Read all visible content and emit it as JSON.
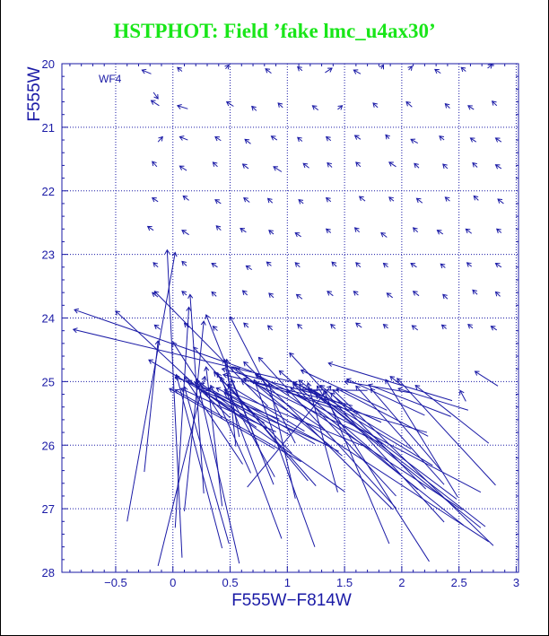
{
  "chart_data": {
    "type": "scatter",
    "title": "HSTPHOT: Field ’fake lmc_u4ax30’",
    "xlabel": "F555W−F814W",
    "ylabel": "F555W",
    "panel_label": "WF4",
    "xlim": [
      -0.97,
      3.02
    ],
    "ylim": [
      28,
      20
    ],
    "y_inverted": true,
    "grid": true,
    "grid_style": "dotted",
    "x_ticks": [
      -0.5,
      0,
      0.5,
      1,
      1.5,
      2,
      2.5,
      3
    ],
    "x_tick_labels": [
      "−0.5",
      "0",
      "0.5",
      "1",
      "1.5",
      "2",
      "2.5",
      "3"
    ],
    "y_ticks": [
      20,
      21,
      22,
      23,
      24,
      25,
      26,
      27,
      28
    ],
    "y_tick_labels": [
      "20",
      "21",
      "22",
      "23",
      "24",
      "25",
      "26",
      "27",
      "28"
    ],
    "color": "#1a1aa6",
    "arrows_from_input_to_recovered": [
      [
        -0.19,
        20.16,
        -0.27,
        20.1
      ],
      [
        0.08,
        20.12,
        0.04,
        20.06
      ],
      [
        0.46,
        20.08,
        0.49,
        20.02
      ],
      [
        0.86,
        20.15,
        0.81,
        20.08
      ],
      [
        1.13,
        20.11,
        1.09,
        20.05
      ],
      [
        1.33,
        20.14,
        1.39,
        20.07
      ],
      [
        1.64,
        20.16,
        1.58,
        20.1
      ],
      [
        1.82,
        20.08,
        1.84,
        20.02
      ],
      [
        2.06,
        20.1,
        2.09,
        20.04
      ],
      [
        2.34,
        20.15,
        2.29,
        20.09
      ],
      [
        2.56,
        20.12,
        2.52,
        20.06
      ],
      [
        2.75,
        20.07,
        2.79,
        20.01
      ],
      [
        -0.17,
        20.45,
        -0.13,
        20.55
      ],
      [
        -0.12,
        20.66,
        -0.19,
        20.58
      ],
      [
        0.13,
        20.71,
        0.04,
        20.66
      ],
      [
        0.53,
        20.67,
        0.47,
        20.6
      ],
      [
        0.73,
        20.74,
        0.69,
        20.67
      ],
      [
        0.96,
        20.69,
        0.92,
        20.62
      ],
      [
        1.27,
        20.73,
        1.22,
        20.66
      ],
      [
        1.44,
        20.72,
        1.48,
        20.66
      ],
      [
        1.79,
        20.69,
        1.75,
        20.62
      ],
      [
        2.09,
        20.68,
        2.04,
        20.6
      ],
      [
        2.42,
        20.7,
        2.38,
        20.63
      ],
      [
        2.63,
        20.72,
        2.58,
        20.66
      ],
      [
        2.83,
        20.66,
        2.79,
        20.59
      ],
      [
        -0.13,
        21.23,
        -0.09,
        21.15
      ],
      [
        0.13,
        21.2,
        0.06,
        21.15
      ],
      [
        0.42,
        21.21,
        0.37,
        21.15
      ],
      [
        0.68,
        21.26,
        0.63,
        21.19
      ],
      [
        0.91,
        21.2,
        0.86,
        21.14
      ],
      [
        1.13,
        21.22,
        1.09,
        21.16
      ],
      [
        1.38,
        21.21,
        1.34,
        21.15
      ],
      [
        1.64,
        21.19,
        1.59,
        21.13
      ],
      [
        1.89,
        21.18,
        1.86,
        21.12
      ],
      [
        2.14,
        21.25,
        2.08,
        21.19
      ],
      [
        2.37,
        21.2,
        2.33,
        21.14
      ],
      [
        2.65,
        21.23,
        2.6,
        21.17
      ],
      [
        2.87,
        21.23,
        2.82,
        21.17
      ],
      [
        -0.14,
        21.62,
        -0.18,
        21.54
      ],
      [
        0.12,
        21.68,
        0.06,
        21.61
      ],
      [
        0.39,
        21.62,
        0.35,
        21.55
      ],
      [
        0.66,
        21.65,
        0.61,
        21.58
      ],
      [
        0.95,
        21.7,
        0.88,
        21.62
      ],
      [
        1.19,
        21.64,
        1.14,
        21.57
      ],
      [
        1.39,
        21.63,
        1.35,
        21.56
      ],
      [
        1.64,
        21.62,
        1.6,
        21.55
      ],
      [
        1.95,
        21.62,
        1.89,
        21.55
      ],
      [
        2.15,
        21.64,
        2.11,
        21.57
      ],
      [
        2.4,
        21.65,
        2.36,
        21.58
      ],
      [
        2.66,
        21.63,
        2.62,
        21.56
      ],
      [
        2.87,
        21.65,
        2.82,
        21.59
      ],
      [
        -0.13,
        22.17,
        -0.18,
        22.11
      ],
      [
        0.14,
        22.15,
        0.09,
        22.08
      ],
      [
        0.42,
        22.2,
        0.37,
        22.14
      ],
      [
        0.67,
        22.18,
        0.62,
        22.11
      ],
      [
        0.87,
        22.19,
        0.83,
        22.12
      ],
      [
        1.14,
        22.2,
        1.1,
        22.14
      ],
      [
        1.38,
        22.17,
        1.34,
        22.11
      ],
      [
        1.68,
        22.16,
        1.63,
        22.09
      ],
      [
        1.93,
        22.16,
        1.89,
        22.1
      ],
      [
        2.18,
        22.19,
        2.13,
        22.12
      ],
      [
        2.42,
        22.16,
        2.38,
        22.1
      ],
      [
        2.67,
        22.15,
        2.63,
        22.08
      ],
      [
        2.89,
        22.2,
        2.84,
        22.13
      ],
      [
        -0.17,
        22.62,
        -0.22,
        22.56
      ],
      [
        0.14,
        22.69,
        0.08,
        22.62
      ],
      [
        0.42,
        22.62,
        0.38,
        22.55
      ],
      [
        0.64,
        22.65,
        0.59,
        22.59
      ],
      [
        0.88,
        22.68,
        0.84,
        22.62
      ],
      [
        1.12,
        22.72,
        1.07,
        22.66
      ],
      [
        1.38,
        22.66,
        1.34,
        22.6
      ],
      [
        1.63,
        22.65,
        1.59,
        22.58
      ],
      [
        1.87,
        22.73,
        1.82,
        22.66
      ],
      [
        2.14,
        22.65,
        2.1,
        22.58
      ],
      [
        2.36,
        22.68,
        2.31,
        22.62
      ],
      [
        2.61,
        22.67,
        2.56,
        22.6
      ],
      [
        2.87,
        22.66,
        2.83,
        22.6
      ],
      [
        -0.13,
        23.2,
        -0.17,
        23.13
      ],
      [
        0.12,
        23.18,
        0.08,
        23.11
      ],
      [
        0.39,
        23.2,
        0.34,
        23.14
      ],
      [
        0.69,
        23.24,
        0.64,
        23.18
      ],
      [
        0.86,
        23.18,
        0.82,
        23.12
      ],
      [
        1.11,
        23.2,
        1.07,
        23.13
      ],
      [
        1.43,
        23.19,
        1.39,
        23.12
      ],
      [
        1.64,
        23.2,
        1.6,
        23.13
      ],
      [
        1.88,
        23.2,
        1.84,
        23.14
      ],
      [
        2.13,
        23.2,
        2.08,
        23.14
      ],
      [
        2.38,
        23.21,
        2.34,
        23.15
      ],
      [
        2.61,
        23.19,
        2.57,
        23.13
      ],
      [
        2.87,
        23.2,
        2.82,
        23.14
      ],
      [
        -0.13,
        23.67,
        -0.18,
        23.6
      ],
      [
        0.12,
        23.64,
        0.08,
        23.58
      ],
      [
        0.38,
        23.66,
        0.34,
        23.59
      ],
      [
        0.65,
        23.64,
        0.61,
        23.57
      ],
      [
        0.88,
        23.68,
        0.84,
        23.61
      ],
      [
        1.13,
        23.7,
        1.08,
        23.63
      ],
      [
        1.4,
        23.65,
        1.35,
        23.58
      ],
      [
        1.62,
        23.64,
        1.58,
        23.58
      ],
      [
        1.92,
        23.68,
        1.87,
        23.61
      ],
      [
        2.15,
        23.65,
        2.1,
        23.58
      ],
      [
        2.4,
        23.7,
        2.36,
        23.63
      ],
      [
        2.66,
        23.63,
        2.62,
        23.56
      ],
      [
        2.86,
        23.66,
        2.82,
        23.59
      ],
      [
        -0.11,
        24.18,
        -0.16,
        24.11
      ],
      [
        0.14,
        24.15,
        0.1,
        24.08
      ],
      [
        0.39,
        24.2,
        0.35,
        24.13
      ],
      [
        0.66,
        24.15,
        0.62,
        24.08
      ],
      [
        0.87,
        24.19,
        0.83,
        24.12
      ],
      [
        1.13,
        24.17,
        1.09,
        24.1
      ],
      [
        1.42,
        24.17,
        1.38,
        24.1
      ],
      [
        1.65,
        24.15,
        1.6,
        24.08
      ],
      [
        1.88,
        24.16,
        1.84,
        24.1
      ],
      [
        2.14,
        24.19,
        2.09,
        24.12
      ],
      [
        2.39,
        24.17,
        2.35,
        24.11
      ],
      [
        2.62,
        24.16,
        2.58,
        24.1
      ],
      [
        2.83,
        24.19,
        2.78,
        24.13
      ],
      [
        -0.4,
        27.2,
        0.02,
        22.97
      ],
      [
        0.08,
        27.77,
        -0.05,
        22.93
      ],
      [
        0.02,
        27.3,
        0.14,
        23.83
      ],
      [
        -0.25,
        26.42,
        -0.13,
        24.36
      ],
      [
        0.27,
        26.76,
        0.15,
        23.63
      ],
      [
        0.1,
        27.04,
        0.27,
        24.05
      ],
      [
        0.43,
        26.96,
        0.29,
        24.77
      ],
      [
        0.55,
        26.02,
        0.47,
        24.65
      ],
      [
        0.58,
        25.87,
        0.45,
        24.65
      ],
      [
        -0.13,
        27.9,
        0.28,
        24.92
      ],
      [
        0.43,
        27.62,
        0.03,
        24.89
      ],
      [
        0.58,
        27.86,
        0.21,
        24.96
      ],
      [
        0.49,
        27.55,
        0.1,
        25.08
      ],
      [
        0.68,
        26.44,
        0.33,
        25.06
      ],
      [
        1.18,
        26.56,
        0.48,
        25.04
      ],
      [
        0.95,
        27.47,
        0.42,
        24.93
      ],
      [
        1.24,
        27.6,
        0.71,
        24.97
      ],
      [
        1.07,
        26.84,
        0.84,
        25.02
      ],
      [
        0.88,
        26.62,
        0.51,
        24.97
      ],
      [
        1.95,
        26.8,
        1.05,
        25.03
      ],
      [
        1.44,
        26.74,
        1.18,
        25.02
      ],
      [
        2.24,
        27.83,
        1.26,
        25.07
      ],
      [
        1.89,
        27.55,
        1.32,
        25.14
      ],
      [
        2.76,
        27.52,
        0.6,
        24.99
      ],
      [
        2.54,
        27.26,
        1.03,
        25.1
      ],
      [
        2.53,
        27.02,
        0.72,
        24.88
      ],
      [
        2.34,
        26.39,
        1.73,
        25.11
      ],
      [
        2.08,
        26.06,
        1.23,
        25.14
      ],
      [
        2.23,
        25.86,
        1.43,
        25.11
      ],
      [
        2.49,
        26.82,
        1.86,
        24.97
      ],
      [
        2.73,
        27.28,
        1.18,
        25.11
      ],
      [
        2.37,
        26.62,
        1.6,
        25.07
      ],
      [
        2.48,
        26.85,
        1.1,
        24.98
      ],
      [
        2.69,
        27.3,
        1.25,
        25.21
      ],
      [
        2.82,
        26.63,
        1.96,
        24.95
      ],
      [
        2.8,
        27.58,
        1.4,
        25.13
      ],
      [
        2.76,
        25.97,
        2.12,
        25.06
      ],
      [
        2.43,
        25.55,
        1.71,
        25.05
      ],
      [
        2.58,
        25.45,
        1.97,
        25.11
      ],
      [
        2.56,
        25.31,
        2.51,
        25.14
      ],
      [
        2.84,
        25.07,
        2.64,
        24.84
      ],
      [
        0.69,
        24.84,
        -0.86,
        23.87
      ],
      [
        1.08,
        25.02,
        -0.87,
        24.18
      ],
      [
        0.83,
        25.39,
        -0.16,
        23.58
      ],
      [
        0.5,
        25.57,
        -0.5,
        23.89
      ],
      [
        0.82,
        25.74,
        -0.21,
        24.66
      ],
      [
        0.43,
        25.58,
        0.0,
        24.38
      ],
      [
        0.77,
        26.12,
        0.29,
        23.95
      ],
      [
        1.07,
        25.97,
        0.5,
        23.98
      ],
      [
        1.25,
        26.64,
        0.18,
        24.46
      ],
      [
        0.61,
        26.3,
        0.1,
        24.93
      ],
      [
        0.89,
        26.5,
        0.39,
        24.87
      ],
      [
        1.95,
        26.99,
        0.75,
        24.62
      ],
      [
        1.33,
        25.76,
        0.51,
        24.77
      ],
      [
        1.45,
        26.1,
        0.38,
        25.1
      ],
      [
        1.83,
        25.98,
        0.62,
        24.95
      ],
      [
        2.14,
        26.7,
        0.93,
        24.83
      ],
      [
        2.27,
        26.32,
        1.1,
        25.05
      ],
      [
        1.66,
        26.01,
        0.45,
        25.13
      ],
      [
        1.35,
        26.0,
        0.27,
        25.15
      ],
      [
        1.48,
        26.17,
        0.55,
        24.78
      ],
      [
        2.37,
        27.21,
        1.02,
        24.55
      ],
      [
        1.92,
        27.01,
        0.62,
        24.69
      ],
      [
        2.21,
        26.69,
        1.38,
        25.18
      ],
      [
        0.65,
        26.66,
        1.38,
        25.07
      ],
      [
        2.69,
        26.74,
        0.73,
        24.89
      ],
      [
        1.24,
        25.98,
        0.45,
        25.18
      ],
      [
        0.9,
        25.79,
        0.07,
        25.11
      ],
      [
        1.12,
        26.26,
        0.02,
        25.13
      ],
      [
        1.5,
        26.73,
        0.2,
        25.07
      ],
      [
        1.04,
        26.13,
        0.36,
        24.85
      ],
      [
        1.34,
        25.24,
        0.43,
        24.8
      ],
      [
        1.57,
        25.38,
        0.44,
        24.89
      ],
      [
        0.89,
        26.06,
        -0.03,
        25.11
      ],
      [
        0.73,
        25.72,
        0.13,
        24.98
      ],
      [
        0.93,
        25.59,
        0.02,
        24.93
      ],
      [
        2.44,
        25.3,
        1.36,
        24.71
      ],
      [
        2.2,
        25.53,
        1.52,
        24.96
      ],
      [
        1.87,
        25.45,
        1.12,
        24.82
      ],
      [
        2.0,
        25.06,
        1.9,
        24.92
      ],
      [
        2.09,
        25.18,
        1.5,
        25.0
      ],
      [
        1.7,
        25.14,
        1.12,
        25.13
      ],
      [
        1.15,
        25.78,
        0.48,
        25.05
      ],
      [
        1.02,
        25.84,
        0.31,
        25.1
      ],
      [
        0.8,
        25.65,
        0.19,
        25.01
      ],
      [
        0.65,
        25.59,
        0.24,
        25.02
      ],
      [
        1.41,
        25.43,
        0.99,
        25.16
      ],
      [
        2.22,
        25.8,
        0.72,
        25.02
      ],
      [
        1.61,
        25.52,
        1.29,
        25.06
      ],
      [
        1.82,
        25.64,
        1.05,
        25.01
      ]
    ]
  }
}
